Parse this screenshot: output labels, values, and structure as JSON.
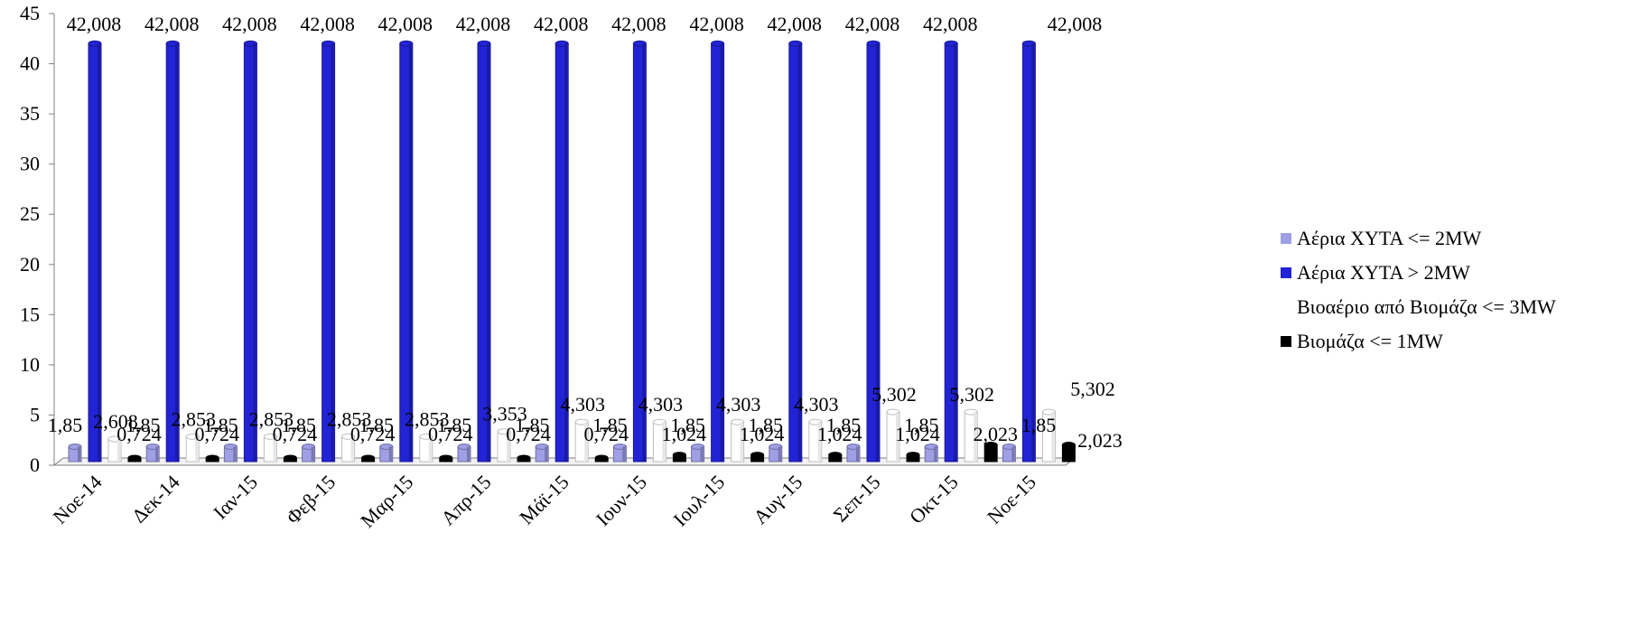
{
  "chart_data": {
    "type": "bar",
    "categories": [
      "Νοε-14",
      "Δεκ-14",
      "Ιαν-15",
      "Φεβ-15",
      "Μαρ-15",
      "Απρ-15",
      "Μάϊ-15",
      "Ιουν-15",
      "Ιουλ-15",
      "Αυγ-15",
      "Σεπ-15",
      "Οκτ-15",
      "Νοε-15"
    ],
    "series": [
      {
        "name": "Αέρια ΧΥΤΑ <= 2MW",
        "color": "#9f9fe6",
        "values": [
          1.85,
          1.85,
          1.85,
          1.85,
          1.85,
          1.85,
          1.85,
          1.85,
          1.85,
          1.85,
          1.85,
          1.85,
          1.85
        ],
        "labels": [
          "1,85",
          "1,85",
          "1,85",
          "1,85",
          "1,85",
          "1,85",
          "1,85",
          "1,85",
          "1,85",
          "1,85",
          "1,85",
          "1,85",
          "1,85"
        ]
      },
      {
        "name": "Αέρια ΧΥΤΑ > 2MW",
        "color": "#2323d6",
        "values": [
          42.008,
          42.008,
          42.008,
          42.008,
          42.008,
          42.008,
          42.008,
          42.008,
          42.008,
          42.008,
          42.008,
          42.008,
          42.008
        ],
        "labels": [
          "42,008",
          "42,008",
          "42,008",
          "42,008",
          "42,008",
          "42,008",
          "42,008",
          "42,008",
          "42,008",
          "42,008",
          "42,008",
          "42,008",
          "42,008"
        ]
      },
      {
        "name": "Βιοαέριο από Βιομάζα <= 3MW",
        "color": "#ffffff",
        "values": [
          2.608,
          2.853,
          2.853,
          2.853,
          2.853,
          3.353,
          4.303,
          4.303,
          4.303,
          4.303,
          5.302,
          5.302,
          5.302
        ],
        "labels": [
          "2,608",
          "2,853",
          "2,853",
          "2,853",
          "2,853",
          "3,353",
          "4,303",
          "4,303",
          "4,303",
          "4,303",
          "5,302",
          "5,302",
          "5,302"
        ]
      },
      {
        "name": "Βιομάζα <= 1MW",
        "color": "#000000",
        "values": [
          0.724,
          0.724,
          0.724,
          0.724,
          0.724,
          0.724,
          0.724,
          1.024,
          1.024,
          1.024,
          1.024,
          2.023,
          2.023
        ],
        "labels": [
          "0,724",
          "0,724",
          "0,724",
          "0,724",
          "0,724",
          "0,724",
          "0,724",
          "1,024",
          "1,024",
          "1,024",
          "1,024",
          "2,023",
          "2,023"
        ]
      }
    ],
    "yticks": [
      "0",
      "5",
      "10",
      "15",
      "20",
      "25",
      "30",
      "35",
      "40",
      "45"
    ],
    "ylim": [
      0,
      45
    ],
    "legend_position": "right",
    "grid": false
  }
}
